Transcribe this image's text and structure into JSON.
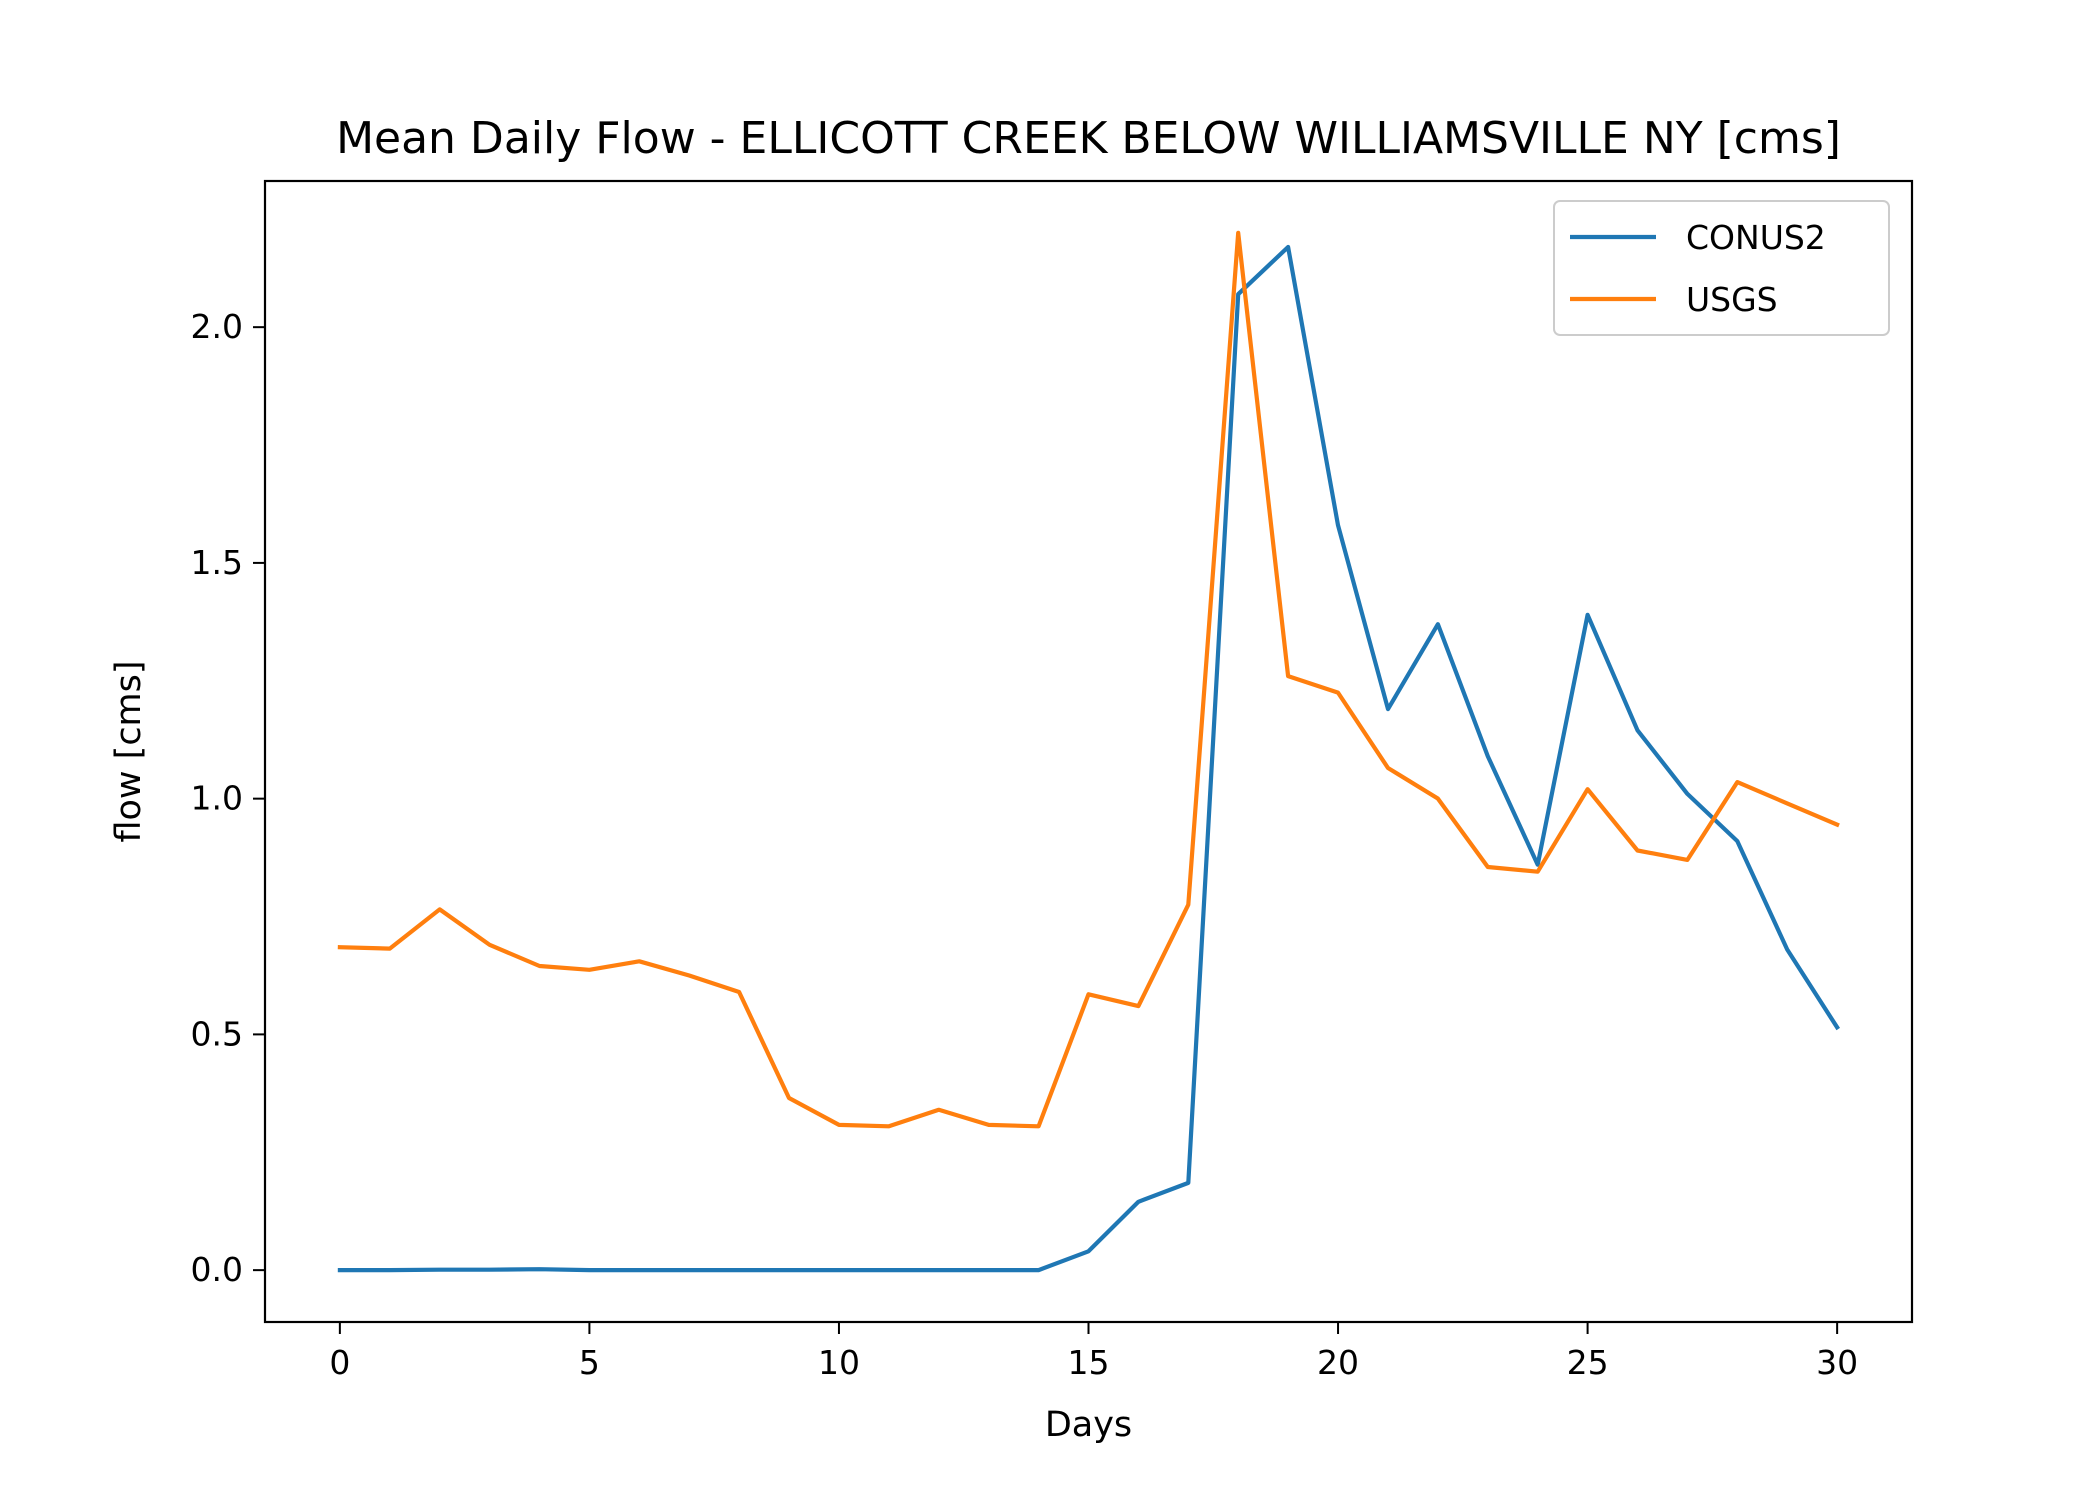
{
  "chart_data": {
    "type": "line",
    "title": "Mean Daily Flow - ELLICOTT CREEK BELOW WILLIAMSVILLE NY [cms]",
    "xlabel": "Days",
    "ylabel": "flow [cms]",
    "xlim": [
      -1.5,
      31.5
    ],
    "ylim": [
      -0.11,
      2.31
    ],
    "xticks": [
      0,
      5,
      10,
      15,
      20,
      25,
      30
    ],
    "xtick_labels": [
      "0",
      "5",
      "10",
      "15",
      "20",
      "25",
      "30"
    ],
    "yticks": [
      0.0,
      0.5,
      1.0,
      1.5,
      2.0
    ],
    "ytick_labels": [
      "0.0",
      "0.5",
      "1.0",
      "1.5",
      "2.0"
    ],
    "grid": false,
    "legend": {
      "position": "upper right"
    },
    "x": [
      0,
      1,
      2,
      3,
      4,
      5,
      6,
      7,
      8,
      9,
      10,
      11,
      12,
      13,
      14,
      15,
      16,
      17,
      18,
      19,
      20,
      21,
      22,
      23,
      24,
      25,
      26,
      27,
      28,
      29,
      30
    ],
    "series": [
      {
        "name": "CONUS2",
        "color": "#1f77b4",
        "values": [
          0.0,
          0.0,
          0.001,
          0.001,
          0.002,
          0.0,
          0.0,
          0.0,
          0.0,
          0.0,
          0.0,
          0.0,
          0.0,
          0.0,
          0.0,
          0.04,
          0.145,
          0.185,
          2.07,
          2.17,
          1.58,
          1.19,
          1.37,
          1.09,
          0.86,
          1.39,
          1.145,
          1.01,
          0.91,
          0.68,
          0.515
        ]
      },
      {
        "name": "USGS",
        "color": "#ff7f0e",
        "values": [
          0.685,
          0.682,
          0.765,
          0.69,
          0.645,
          0.637,
          0.655,
          0.625,
          0.59,
          0.365,
          0.308,
          0.305,
          0.34,
          0.308,
          0.305,
          0.585,
          0.56,
          0.775,
          2.2,
          1.26,
          1.225,
          1.065,
          1.0,
          0.855,
          0.845,
          1.02,
          0.89,
          0.87,
          1.035,
          0.99,
          0.945
        ]
      }
    ]
  }
}
